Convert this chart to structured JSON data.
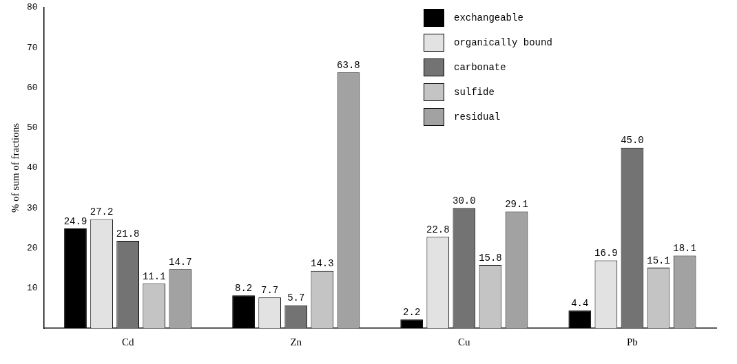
{
  "chart_data": {
    "type": "bar",
    "ylabel": "% of sum of fractions",
    "categories": [
      "Cd",
      "Zn",
      "Cu",
      "Pb"
    ],
    "series": [
      {
        "name": "exchangeable",
        "color": "#000000",
        "values": [
          24.9,
          8.2,
          2.2,
          4.4
        ],
        "value_labels": [
          "24.9",
          "8.2",
          "2.2",
          "4.4"
        ]
      },
      {
        "name": "organically bound",
        "color": "#e2e2e2",
        "values": [
          27.2,
          7.7,
          22.8,
          16.9
        ],
        "value_labels": [
          "27.2",
          "7.7",
          "22.8",
          "16.9"
        ]
      },
      {
        "name": "carbonate",
        "color": "#737373",
        "values": [
          21.8,
          5.7,
          30.0,
          45.0
        ],
        "value_labels": [
          "21.8",
          "5.7",
          "30.0",
          "45.0"
        ]
      },
      {
        "name": "sulfide",
        "color": "#c4c4c4",
        "values": [
          11.1,
          14.3,
          15.8,
          15.1
        ],
        "value_labels": [
          "11.1",
          "14.3",
          "15.8",
          "15.1"
        ]
      },
      {
        "name": "residual",
        "color": "#a2a2a2",
        "values": [
          14.7,
          63.8,
          29.1,
          18.1
        ],
        "value_labels": [
          "14.7",
          "63.8",
          "29.1",
          "18.1"
        ]
      }
    ],
    "ylim": [
      0,
      80
    ],
    "yticks": [
      10,
      20,
      30,
      40,
      50,
      60,
      70,
      80
    ],
    "grid": false,
    "legend": "top right"
  }
}
